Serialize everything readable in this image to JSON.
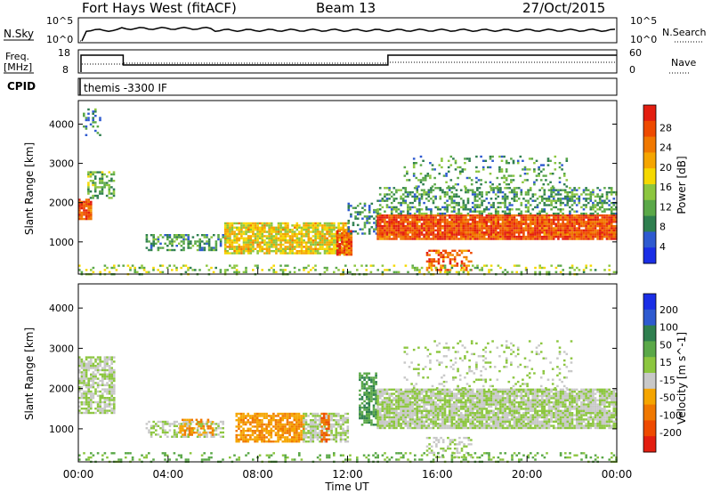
{
  "header": {
    "station": "Fort Hays West (fitACF)",
    "beam": "Beam 13",
    "date": "27/Oct/2015"
  },
  "top_panels": {
    "noise": {
      "left_label": "N.Sky",
      "right_label": "N.Search",
      "left_ticks": [
        "10^5",
        "10^0"
      ],
      "right_ticks": [
        "10^5",
        "10^0"
      ]
    },
    "freq": {
      "left_label_1": "Freq.",
      "left_label_2": "[MHz]",
      "right_label": "Nave",
      "left_ticks": [
        "18",
        "8"
      ],
      "right_ticks": [
        "60",
        "0"
      ]
    },
    "cpid": {
      "label": "CPID",
      "text": "themis -3300 IF"
    }
  },
  "chart_data": [
    {
      "type": "heatmap",
      "name": "power",
      "xlabel": "",
      "ylabel": "Slant Range [km]",
      "x_range_hours": [
        0,
        24
      ],
      "ylim": [
        180,
        4600
      ],
      "yticks": [
        1000,
        2000,
        3000,
        4000
      ],
      "colorbar": {
        "label": "Power [dB]",
        "ticks": [
          "4",
          "8",
          "12",
          "16",
          "20",
          "24",
          "28"
        ],
        "colors": [
          "#1a2ee6",
          "#2e5ad0",
          "#2f7f4f",
          "#5aa848",
          "#8cc63f",
          "#f5d800",
          "#f5a500",
          "#f07800",
          "#ee4a00",
          "#e31e10"
        ]
      },
      "scatter_regions": [
        {
          "t": [
            0.0,
            0.6
          ],
          "range": [
            1600,
            2100
          ],
          "value": 27,
          "density": 0.9
        },
        {
          "t": [
            0.4,
            1.6
          ],
          "range": [
            2100,
            2800
          ],
          "value": 12,
          "density": 0.6
        },
        {
          "t": [
            0.2,
            1.0
          ],
          "range": [
            3700,
            4400
          ],
          "value": 8,
          "density": 0.3
        },
        {
          "t": [
            3.0,
            6.5
          ],
          "range": [
            800,
            1200
          ],
          "value": 10,
          "density": 0.55
        },
        {
          "t": [
            6.5,
            12.0
          ],
          "range": [
            700,
            1500
          ],
          "value": 18,
          "density": 0.85
        },
        {
          "t": [
            11.5,
            12.2
          ],
          "range": [
            700,
            1300
          ],
          "value": 26,
          "density": 0.8
        },
        {
          "t": [
            12.0,
            13.3
          ],
          "range": [
            1200,
            2000
          ],
          "value": 8,
          "density": 0.4
        },
        {
          "t": [
            13.3,
            24.0
          ],
          "range": [
            1050,
            1700
          ],
          "value": 27,
          "density": 0.95
        },
        {
          "t": [
            13.3,
            24.0
          ],
          "range": [
            1700,
            2400
          ],
          "value": 10,
          "density": 0.45
        },
        {
          "t": [
            14.5,
            22.0
          ],
          "range": [
            2400,
            3200
          ],
          "value": 10,
          "density": 0.18
        },
        {
          "t": [
            15.5,
            17.5
          ],
          "range": [
            300,
            800
          ],
          "value": 25,
          "density": 0.5
        },
        {
          "t": [
            0.0,
            24.0
          ],
          "range": [
            180,
            420
          ],
          "value": 14,
          "density": 0.25
        }
      ]
    },
    {
      "type": "heatmap",
      "name": "velocity",
      "xlabel": "Time UT",
      "ylabel": "Slant Range [km]",
      "x_range_hours": [
        0,
        24
      ],
      "xticks": [
        "00:00",
        "04:00",
        "08:00",
        "12:00",
        "16:00",
        "20:00",
        "00:00"
      ],
      "ylim": [
        180,
        4600
      ],
      "yticks": [
        1000,
        2000,
        3000,
        4000
      ],
      "colorbar": {
        "label": "Velocity [m s^-1]",
        "ticks": [
          "200",
          "100",
          "50",
          "15",
          "-15",
          "-50",
          "-100",
          "-200"
        ],
        "colors": [
          "#1a2ee6",
          "#2e5ad0",
          "#2f7f4f",
          "#5aa848",
          "#8cc63f",
          "#c8c8c8",
          "#f5a500",
          "#f07800",
          "#ee4a00",
          "#e31e10"
        ]
      },
      "scatter_regions": [
        {
          "t": [
            0.0,
            1.6
          ],
          "range": [
            1400,
            2800
          ],
          "value": 0,
          "density": 0.7
        },
        {
          "t": [
            3.0,
            6.5
          ],
          "range": [
            800,
            1200
          ],
          "value": 0,
          "density": 0.5
        },
        {
          "t": [
            4.5,
            6.0
          ],
          "range": [
            850,
            1250
          ],
          "value": -30,
          "density": 0.5
        },
        {
          "t": [
            7.0,
            10.0
          ],
          "range": [
            700,
            1400
          ],
          "value": -30,
          "density": 0.75
        },
        {
          "t": [
            10.0,
            12.0
          ],
          "range": [
            700,
            1400
          ],
          "value": 0,
          "density": 0.7
        },
        {
          "t": [
            10.8,
            11.2
          ],
          "range": [
            700,
            1400
          ],
          "value": -70,
          "density": 0.7
        },
        {
          "t": [
            12.5,
            13.3
          ],
          "range": [
            1100,
            2400
          ],
          "value": 30,
          "density": 0.7
        },
        {
          "t": [
            13.3,
            24.0
          ],
          "range": [
            1000,
            2000
          ],
          "value": 0,
          "density": 0.9
        },
        {
          "t": [
            14.5,
            22.0
          ],
          "range": [
            2000,
            3200
          ],
          "value": 0,
          "density": 0.15
        },
        {
          "t": [
            15.5,
            17.5
          ],
          "range": [
            300,
            800
          ],
          "value": 0,
          "density": 0.4
        },
        {
          "t": [
            0.0,
            24.0
          ],
          "range": [
            180,
            420
          ],
          "value": 20,
          "density": 0.2
        }
      ]
    }
  ]
}
